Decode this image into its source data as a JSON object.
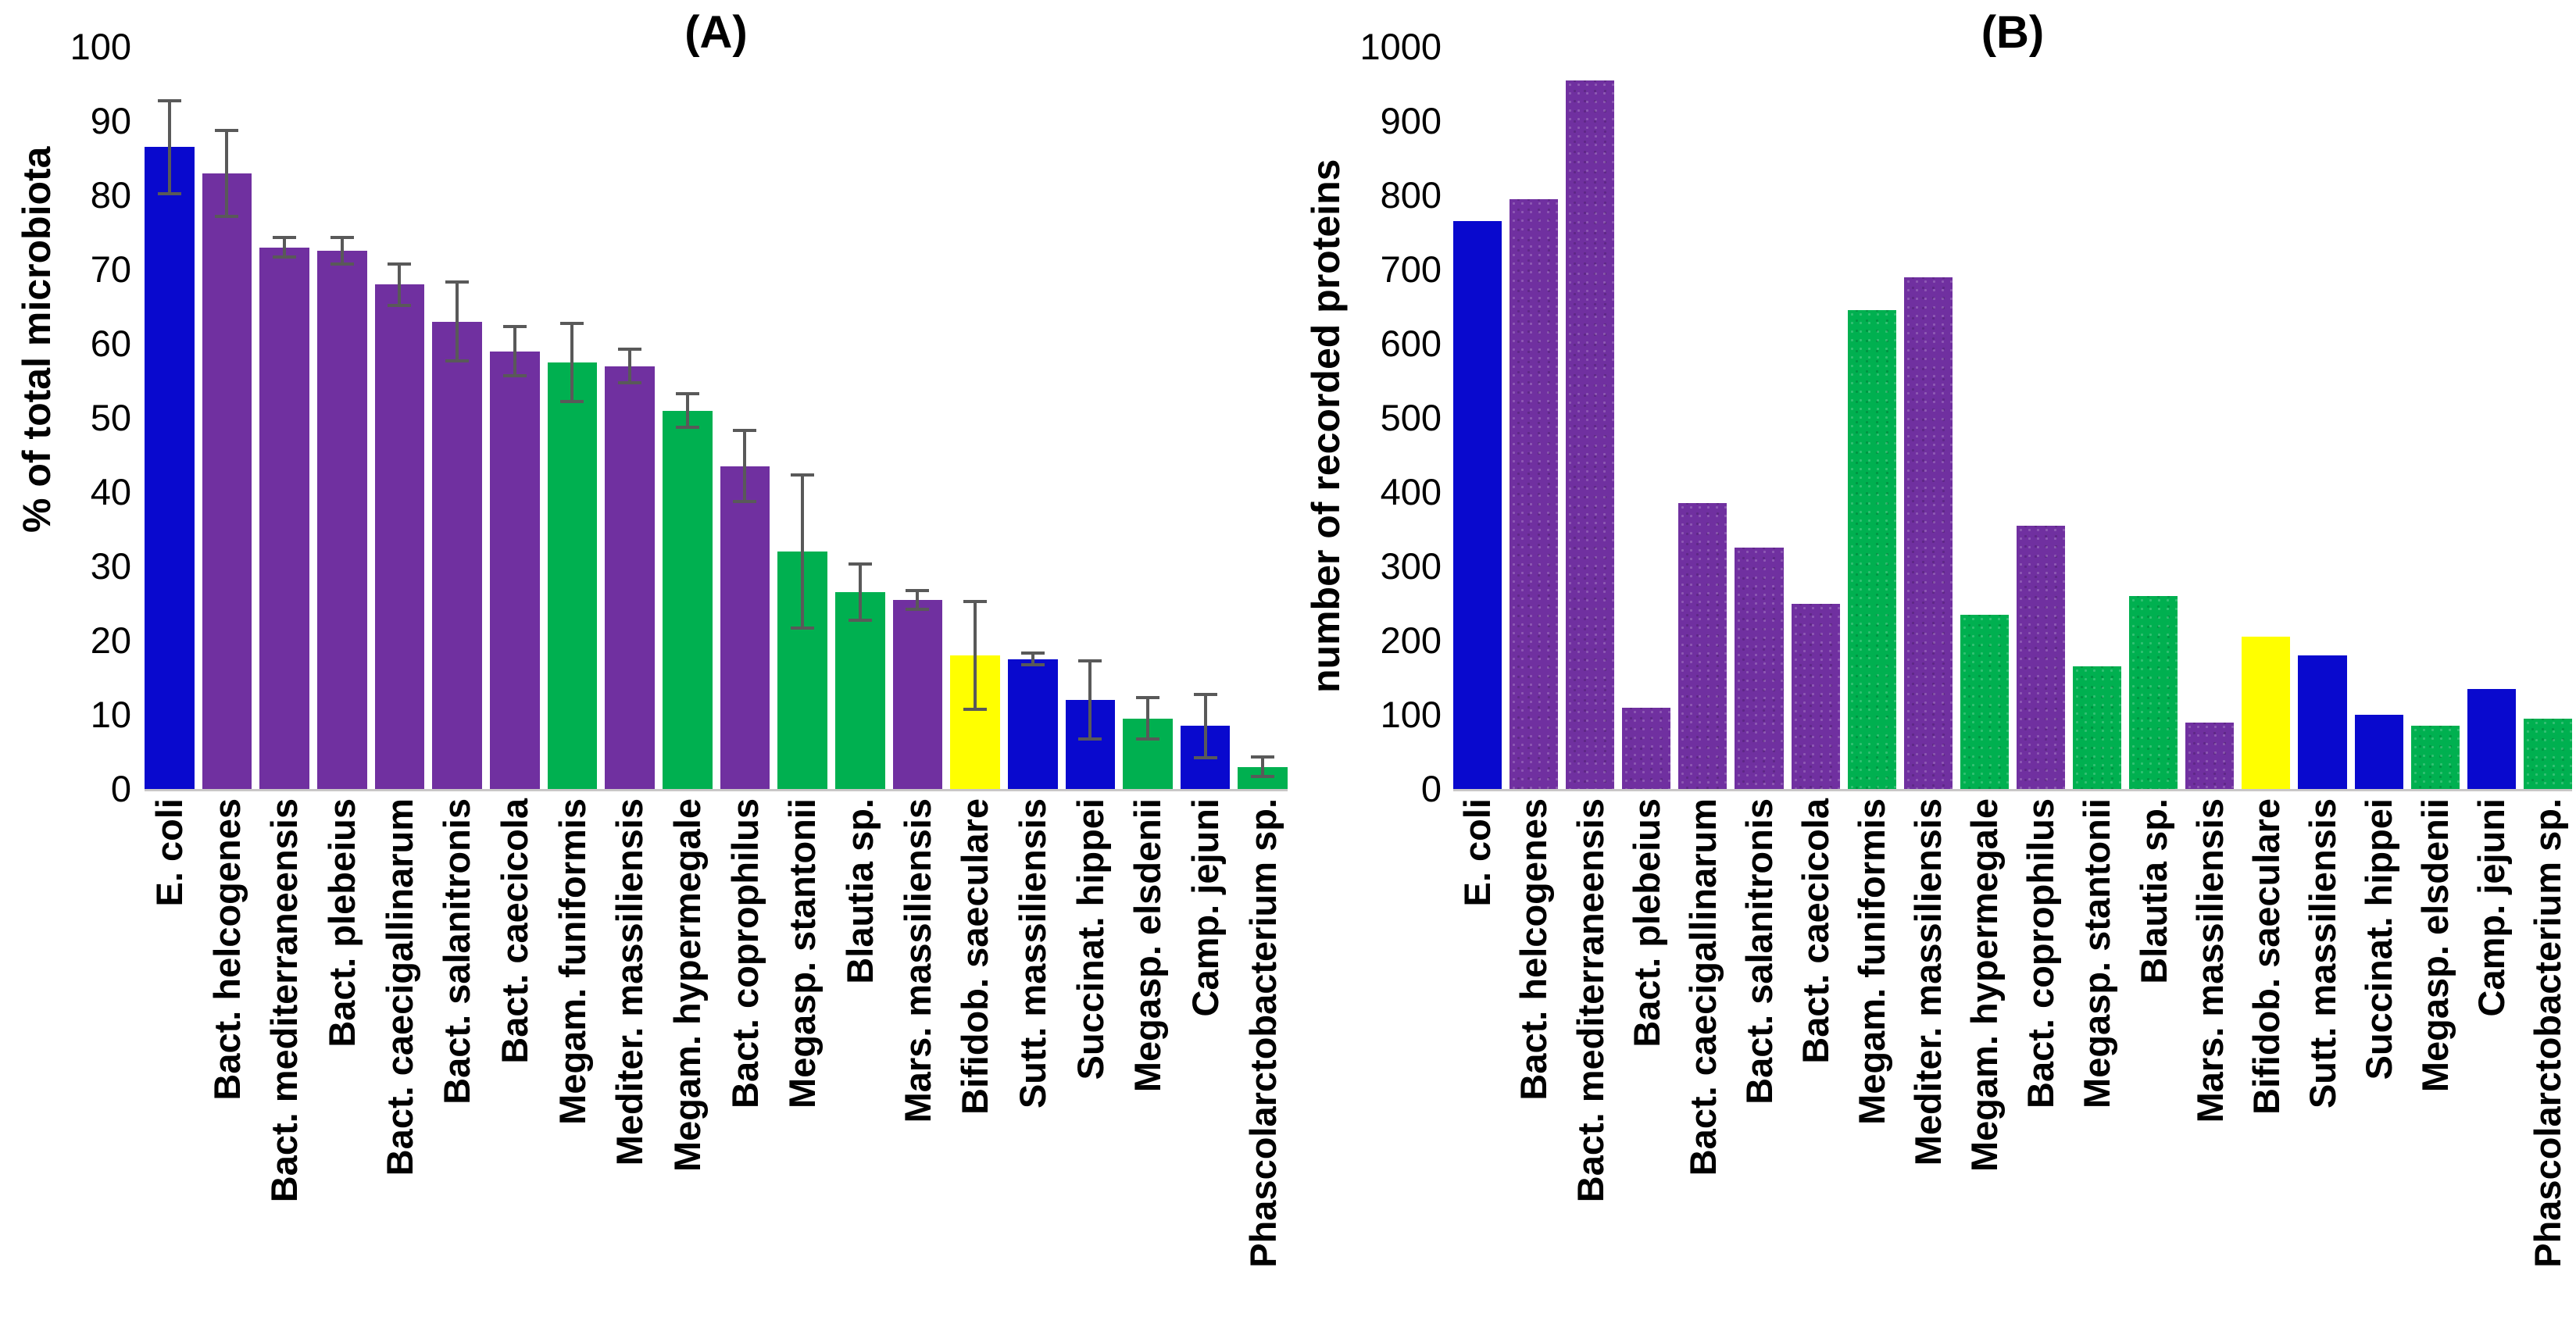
{
  "colors": {
    "blue": "#0909CE",
    "purple": "#7030A0",
    "green": "#00B050",
    "yellow": "#FFFF00",
    "error_bar": "#595959",
    "axis_line": "#C9C7C7",
    "text": "#000000",
    "background": "#FFFFFF"
  },
  "chart_data": [
    {
      "type": "bar",
      "panel": "A",
      "title": "(A)",
      "ylabel": "% of total microbiota",
      "xlabel": "",
      "ylim": [
        0,
        100
      ],
      "ytick_step": 10,
      "ytick_labels": [
        "0",
        "10",
        "20",
        "30",
        "40",
        "50",
        "60",
        "70",
        "80",
        "90",
        "100"
      ],
      "grid": false,
      "legend": null,
      "error_bars": true,
      "texture": false,
      "categories": [
        "E. coli",
        "Bact. helcogenes",
        "Bact. mediterraneensis",
        "Bact. plebeius",
        "Bact. caecigallinarum",
        "Bact. salanitronis",
        "Bact. caecicola",
        "Megam. funiformis",
        "Mediter. massiliensis",
        "Megam. hypermegale",
        "Bact. coprophilus",
        "Megasp. stantonii",
        "Blautia sp.",
        "Mars. massiliensis",
        "Bifidob. saeculare",
        "Sutt. massiliensis",
        "Succinat. hippei",
        "Megasp. elsdenii",
        "Camp. jejuni",
        "Phascolarctobacterium sp."
      ],
      "values": [
        86.5,
        83,
        73,
        72.5,
        68,
        63,
        59,
        57.5,
        57,
        51,
        43.5,
        32,
        26.5,
        25.5,
        18,
        17.5,
        12,
        9.5,
        8.5,
        3
      ],
      "errors": [
        6.5,
        6,
        1.5,
        2,
        3,
        5.5,
        3.5,
        5.5,
        2.5,
        2.5,
        5,
        10.5,
        4,
        1.5,
        7.5,
        1,
        5.5,
        3,
        4.5,
        1.5
      ],
      "bar_colors": [
        "blue",
        "purple",
        "purple",
        "purple",
        "purple",
        "purple",
        "purple",
        "green",
        "purple",
        "green",
        "purple",
        "green",
        "green",
        "purple",
        "yellow",
        "blue",
        "blue",
        "green",
        "blue",
        "green"
      ]
    },
    {
      "type": "bar",
      "panel": "B",
      "title": "(B)",
      "ylabel": "number of recorded proteins",
      "xlabel": "",
      "ylim": [
        0,
        1000
      ],
      "ytick_step": 100,
      "ytick_labels": [
        "0",
        "100",
        "200",
        "300",
        "400",
        "500",
        "600",
        "700",
        "800",
        "900",
        "1000"
      ],
      "grid": false,
      "legend": null,
      "error_bars": false,
      "texture": true,
      "categories": [
        "E. coli",
        "Bact. helcogenes",
        "Bact. mediterraneensis",
        "Bact. plebeius",
        "Bact. caecigallinarum",
        "Bact. salanitronis",
        "Bact. caecicola",
        "Megam. funiformis",
        "Mediter. massiliensis",
        "Megam. hypermegale",
        "Bact. coprophilus",
        "Megasp. stantonii",
        "Blautia sp.",
        "Mars. massiliensis",
        "Bifidob. saeculare",
        "Sutt. massiliensis",
        "Succinat. hippei",
        "Megasp. elsdenii",
        "Camp. jejuni",
        "Phascolarctobacterium sp."
      ],
      "values": [
        765,
        795,
        955,
        110,
        385,
        325,
        250,
        645,
        690,
        235,
        355,
        165,
        260,
        90,
        205,
        180,
        100,
        85,
        135,
        95
      ],
      "errors": null,
      "bar_colors": [
        "blue",
        "purple",
        "purple",
        "purple",
        "purple",
        "purple",
        "purple",
        "green",
        "purple",
        "green",
        "purple",
        "green",
        "green",
        "purple",
        "yellow",
        "blue",
        "blue",
        "green",
        "blue",
        "green"
      ]
    }
  ]
}
